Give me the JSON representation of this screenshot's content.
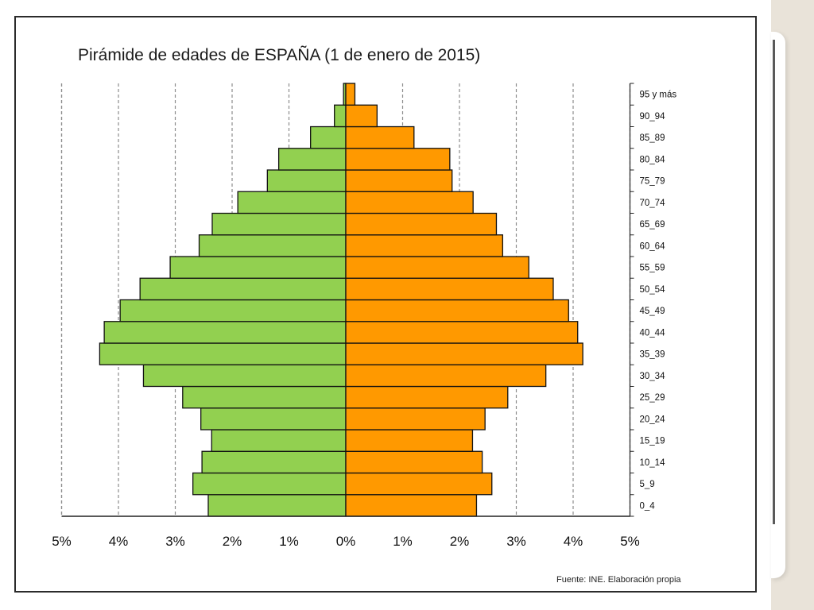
{
  "chart_data": {
    "type": "bar",
    "orientation": "horizontal",
    "chart_kind": "population-pyramid",
    "title": "Pirámide de edades de ESPAÑA (1 de enero de 2015)",
    "source": "Fuente: INE. Elaboración propia",
    "categories": [
      "0_4",
      "5_9",
      "10_14",
      "15_19",
      "20_24",
      "25_29",
      "30_34",
      "35_39",
      "40_44",
      "45_49",
      "50_54",
      "55_59",
      "60_64",
      "65_69",
      "70_74",
      "75_79",
      "80_84",
      "85_89",
      "90_94",
      "95 y más"
    ],
    "series": [
      {
        "values": [
          2.42,
          2.69,
          2.53,
          2.36,
          2.55,
          2.87,
          3.56,
          4.33,
          4.25,
          3.97,
          3.62,
          3.09,
          2.58,
          2.35,
          1.9,
          1.38,
          1.18,
          0.62,
          0.2,
          0.04
        ]
      },
      {
        "values": [
          2.3,
          2.57,
          2.4,
          2.23,
          2.45,
          2.85,
          3.52,
          4.17,
          4.08,
          3.92,
          3.65,
          3.22,
          2.76,
          2.65,
          2.24,
          1.87,
          1.83,
          1.2,
          0.55,
          0.16
        ]
      }
    ],
    "xlim": [
      -5,
      5
    ],
    "xticks": [
      "5%",
      "4%",
      "3%",
      "2%",
      "1%",
      "0%",
      "1%",
      "2%",
      "3%",
      "4%",
      "5%"
    ],
    "grid": "vertical dashed",
    "colors": {
      "left": "#92d050",
      "right": "#ff9900",
      "grid": "#8c8c8c",
      "frame": "#2b2b2b"
    }
  }
}
